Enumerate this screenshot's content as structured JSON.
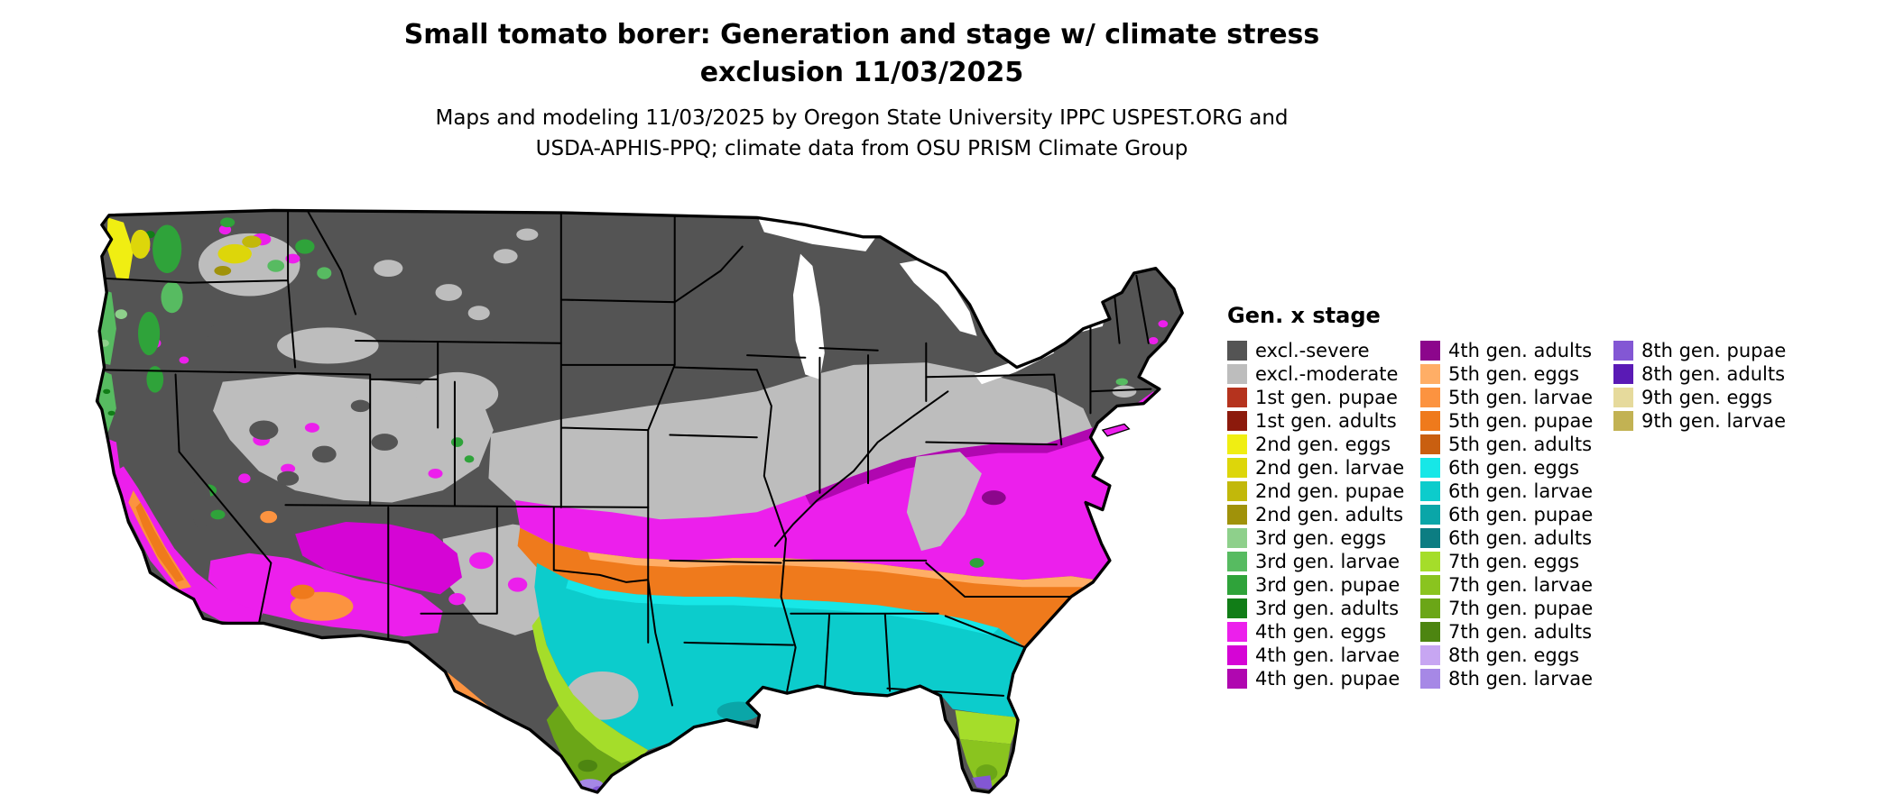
{
  "header": {
    "title_line1": "Small tomato borer: Generation and stage w/ climate stress",
    "title_line2": "exclusion 11/03/2025",
    "subtitle_line1": "Maps and modeling 11/03/2025 by Oregon State University IPPC USPEST.ORG and",
    "subtitle_line2": "USDA-APHIS-PPQ; climate data from OSU PRISM Climate Group"
  },
  "legend": {
    "title": "Gen. x stage",
    "columns": [
      {
        "items": [
          {
            "key": "excl_severe",
            "label": "excl.-severe",
            "color": "#545454"
          },
          {
            "key": "excl_moderate",
            "label": "excl.-moderate",
            "color": "#bdbdbd"
          },
          {
            "key": "g1_pupae",
            "label": "1st gen. pupae",
            "color": "#b5331e"
          },
          {
            "key": "g1_adults",
            "label": "1st gen. adults",
            "color": "#8c1a0c"
          },
          {
            "key": "g2_eggs",
            "label": "2nd gen. eggs",
            "color": "#f0ee12"
          },
          {
            "key": "g2_larvae",
            "label": "2nd gen. larvae",
            "color": "#ddd60a"
          },
          {
            "key": "g2_pupae",
            "label": "2nd gen. pupae",
            "color": "#c2b80a"
          },
          {
            "key": "g2_adults",
            "label": "2nd gen. adults",
            "color": "#a0920a"
          },
          {
            "key": "g3_eggs",
            "label": "3rd gen. eggs",
            "color": "#8ed08b"
          },
          {
            "key": "g3_larvae",
            "label": "3rd gen. larvae",
            "color": "#57bb61"
          },
          {
            "key": "g3_pupae",
            "label": "3rd gen. pupae",
            "color": "#2fa33a"
          },
          {
            "key": "g3_adults",
            "label": "3rd gen. adults",
            "color": "#117d17"
          },
          {
            "key": "g4_eggs",
            "label": "4th gen. eggs",
            "color": "#ec1fec"
          },
          {
            "key": "g4_larvae",
            "label": "4th gen. larvae",
            "color": "#d505d5"
          },
          {
            "key": "g4_pupae",
            "label": "4th gen. pupae",
            "color": "#b007b0"
          }
        ]
      },
      {
        "items": [
          {
            "key": "g4_adults",
            "label": "4th gen. adults",
            "color": "#8c068c"
          },
          {
            "key": "g5_eggs",
            "label": "5th gen. eggs",
            "color": "#ffae66"
          },
          {
            "key": "g5_larvae",
            "label": "5th gen. larvae",
            "color": "#fc9340"
          },
          {
            "key": "g5_pupae",
            "label": "5th gen. pupae",
            "color": "#ef7a1c"
          },
          {
            "key": "g5_adults",
            "label": "5th gen. adults",
            "color": "#c95f10"
          },
          {
            "key": "g6_eggs",
            "label": "6th gen. eggs",
            "color": "#17e7e7"
          },
          {
            "key": "g6_larvae",
            "label": "6th gen. larvae",
            "color": "#0ccccc"
          },
          {
            "key": "g6_pupae",
            "label": "6th gen. pupae",
            "color": "#0aa6a8"
          },
          {
            "key": "g6_adults",
            "label": "6th gen. adults",
            "color": "#0c7d82"
          },
          {
            "key": "g7_eggs",
            "label": "7th gen. eggs",
            "color": "#a5dd2a"
          },
          {
            "key": "g7_larvae",
            "label": "7th gen. larvae",
            "color": "#8ac41f"
          },
          {
            "key": "g7_pupae",
            "label": "7th gen. pupae",
            "color": "#6ba617"
          },
          {
            "key": "g7_adults",
            "label": "7th gen. adults",
            "color": "#4d8511"
          },
          {
            "key": "g8_eggs",
            "label": "8th gen. eggs",
            "color": "#c7a6f2"
          },
          {
            "key": "g8_larvae",
            "label": "8th gen. larvae",
            "color": "#a688e6"
          }
        ]
      },
      {
        "items": [
          {
            "key": "g8_pupae",
            "label": "8th gen. pupae",
            "color": "#8357d4"
          },
          {
            "key": "g8_adults",
            "label": "8th gen. adults",
            "color": "#5a1ab5"
          },
          {
            "key": "g9_eggs",
            "label": "9th gen. eggs",
            "color": "#e6da9c"
          },
          {
            "key": "g9_larvae",
            "label": "9th gen. larvae",
            "color": "#c2b253"
          }
        ]
      }
    ]
  },
  "map": {
    "outline_color": "#000000",
    "state_border_color": "#000000",
    "water_color": "#ffffff"
  }
}
